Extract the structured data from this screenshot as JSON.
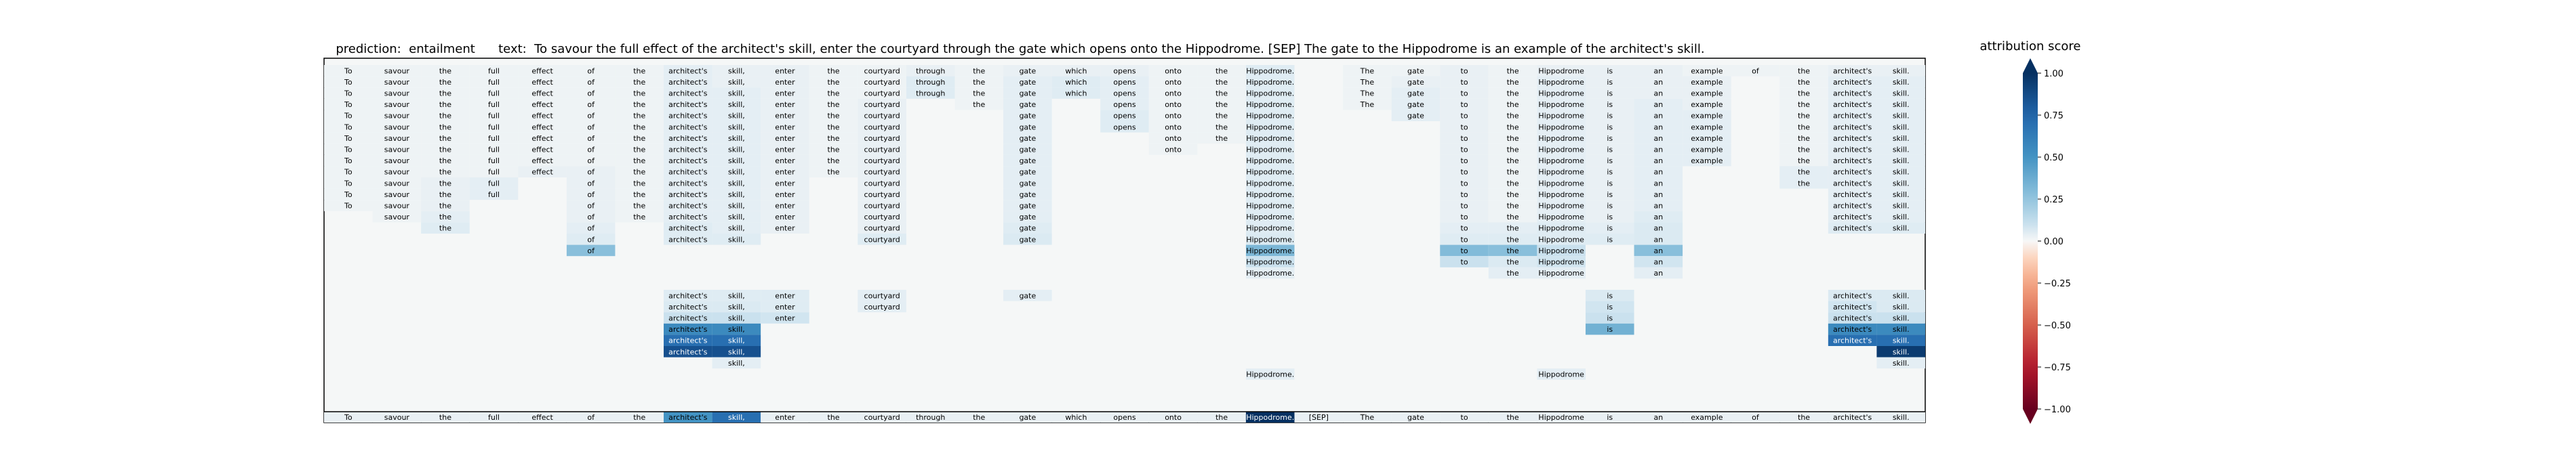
{
  "chart_data": {
    "type": "heatmap",
    "title": {
      "prediction_label": "prediction:",
      "prediction_value": "entailment",
      "text_label": "text:",
      "text_value": "To savour the full effect of the architect's skill, enter the courtyard through the gate which opens onto the Hippodrome. [SEP] The gate to the Hippodrome is an example of the architect's skill."
    },
    "tokens": [
      "To",
      "savour",
      "the",
      "full",
      "effect",
      "of",
      "the",
      "architect's",
      "skill,",
      "enter",
      "the",
      "courtyard",
      "through",
      "the",
      "gate",
      "which",
      "opens",
      "onto",
      "the",
      "Hippodrome.",
      "[SEP]",
      "The",
      "gate",
      "to",
      "the",
      "Hippodrome",
      "is",
      "an",
      "example",
      "of",
      "the",
      "architect's",
      "skill."
    ],
    "highlighted_token_indices": [
      8,
      19
    ],
    "colorbar": {
      "label": "attribution score",
      "range": [
        -1.0,
        1.0
      ],
      "ticks": [
        "1.00",
        "0.75",
        "0.50",
        "0.25",
        "0.00",
        "−0.25",
        "−0.50",
        "−0.75",
        "−1.00"
      ]
    },
    "row_spans": [
      {
        "tokens": "all",
        "from": 0,
        "to": 32
      },
      {
        "from": 0,
        "to": 32,
        "skip": [
          29
        ]
      },
      {
        "from": 0,
        "to": 32,
        "skip": [
          29
        ]
      },
      {
        "from": 0,
        "to": 32,
        "skip": [
          29
        ]
      },
      {
        "from": 0,
        "to": 32,
        "skip": [
          29
        ]
      },
      {
        "from": 0,
        "to": 32,
        "skip": [
          29
        ]
      },
      {
        "from": 0,
        "to": 32,
        "skip": [
          29
        ]
      },
      {
        "from": 0,
        "to": 32,
        "skip": [
          29
        ]
      },
      {
        "from": 0,
        "to": 32,
        "skip": [
          29
        ]
      }
    ],
    "rows": [
      [
        0,
        1,
        2,
        3,
        4,
        5,
        6,
        7,
        8,
        9,
        10,
        11,
        12,
        13,
        14,
        15,
        16,
        17,
        18,
        19,
        21,
        22,
        23,
        24,
        25,
        26,
        27,
        28,
        29,
        30,
        31,
        32
      ],
      [
        0,
        1,
        2,
        3,
        4,
        5,
        6,
        7,
        8,
        9,
        10,
        11,
        12,
        13,
        14,
        15,
        16,
        17,
        18,
        19,
        21,
        22,
        23,
        24,
        25,
        26,
        27,
        28,
        30,
        31,
        32
      ],
      [
        0,
        1,
        2,
        3,
        4,
        5,
        6,
        7,
        8,
        9,
        10,
        11,
        12,
        13,
        14,
        15,
        16,
        17,
        18,
        19,
        21,
        22,
        23,
        24,
        25,
        26,
        27,
        28,
        30,
        31,
        32
      ],
      [
        0,
        1,
        2,
        3,
        4,
        5,
        6,
        7,
        8,
        9,
        10,
        11,
        13,
        14,
        16,
        17,
        18,
        19,
        21,
        22,
        23,
        24,
        25,
        26,
        27,
        28,
        30,
        31,
        32
      ],
      [
        0,
        1,
        2,
        3,
        4,
        5,
        6,
        7,
        8,
        9,
        10,
        11,
        14,
        16,
        17,
        18,
        19,
        22,
        23,
        24,
        25,
        26,
        27,
        28,
        30,
        31,
        32
      ],
      [
        0,
        1,
        2,
        3,
        4,
        5,
        6,
        7,
        8,
        9,
        10,
        11,
        14,
        16,
        17,
        18,
        19,
        23,
        24,
        25,
        26,
        27,
        28,
        30,
        31,
        32
      ],
      [
        0,
        1,
        2,
        3,
        4,
        5,
        6,
        7,
        8,
        9,
        10,
        11,
        14,
        17,
        18,
        19,
        23,
        24,
        25,
        26,
        27,
        28,
        30,
        31,
        32
      ],
      [
        0,
        1,
        2,
        3,
        4,
        5,
        6,
        7,
        8,
        9,
        10,
        11,
        14,
        17,
        19,
        23,
        24,
        25,
        26,
        27,
        28,
        30,
        31,
        32
      ],
      [
        0,
        1,
        2,
        3,
        4,
        5,
        6,
        7,
        8,
        9,
        10,
        11,
        14,
        19,
        23,
        24,
        25,
        26,
        27,
        28,
        30,
        31,
        32
      ],
      [
        0,
        1,
        2,
        3,
        4,
        5,
        6,
        7,
        8,
        9,
        10,
        11,
        14,
        19,
        23,
        24,
        25,
        26,
        27,
        30,
        31,
        32
      ],
      [
        0,
        1,
        2,
        3,
        5,
        6,
        7,
        8,
        9,
        11,
        14,
        19,
        23,
        24,
        25,
        26,
        27,
        30,
        31,
        32
      ],
      [
        0,
        1,
        2,
        3,
        5,
        6,
        7,
        8,
        9,
        11,
        14,
        19,
        23,
        24,
        25,
        26,
        27,
        31,
        32
      ],
      [
        0,
        1,
        2,
        5,
        6,
        7,
        8,
        9,
        11,
        14,
        19,
        23,
        24,
        25,
        26,
        27,
        31,
        32
      ],
      [
        1,
        2,
        5,
        6,
        7,
        8,
        9,
        11,
        14,
        19,
        23,
        24,
        25,
        26,
        27,
        31,
        32
      ],
      [
        2,
        5,
        7,
        8,
        9,
        11,
        14,
        19,
        23,
        24,
        25,
        26,
        27,
        31,
        32
      ],
      [
        5,
        7,
        8,
        11,
        14,
        19,
        23,
        24,
        25,
        26,
        27
      ],
      [
        5,
        19,
        23,
        24,
        25,
        27
      ],
      [
        19,
        23,
        24,
        25,
        27
      ],
      [
        19,
        24,
        25,
        27
      ],
      [],
      [
        7,
        8,
        9,
        11,
        14,
        26,
        31,
        32
      ],
      [
        7,
        8,
        9,
        11,
        26,
        31,
        32
      ],
      [
        7,
        8,
        9,
        26,
        31,
        32
      ],
      [
        7,
        8,
        26,
        31,
        32
      ],
      [
        7,
        8,
        31,
        32
      ],
      [
        7,
        8,
        32
      ],
      [
        8,
        32
      ],
      [
        19,
        25
      ],
      [
        0,
        1,
        2,
        3,
        4,
        5,
        6,
        7,
        8,
        9,
        10,
        11,
        12,
        13,
        14,
        15,
        16,
        17,
        18,
        19,
        20,
        21,
        22,
        23,
        24,
        25,
        26,
        27,
        28,
        29,
        30,
        31,
        32
      ]
    ],
    "row_values": [
      [
        0.02,
        0.02,
        0.02,
        0.02,
        0.02,
        0.02,
        0.02,
        0.04,
        0.03,
        0.03,
        0.02,
        0.02,
        0.03,
        0.02,
        0.03,
        0.03,
        0.03,
        0.02,
        0.02,
        0.05,
        0.02,
        0.02,
        0.03,
        0.02,
        0.03,
        0.03,
        0.03,
        0.02,
        0.02,
        0.02,
        0.03,
        0.03
      ],
      [
        0.02,
        0.02,
        0.02,
        0.02,
        0.02,
        0.02,
        0.02,
        0.04,
        0.03,
        0.03,
        0.02,
        0.02,
        0.05,
        0.02,
        0.04,
        0.05,
        0.04,
        0.02,
        0.02,
        0.05,
        0.02,
        0.03,
        0.03,
        0.02,
        0.04,
        0.03,
        0.03,
        0.03,
        0.02,
        0.04,
        0.04
      ],
      [
        0.02,
        0.02,
        0.02,
        0.02,
        0.02,
        0.02,
        0.02,
        0.04,
        0.04,
        0.03,
        0.02,
        0.02,
        0.05,
        0.02,
        0.04,
        0.05,
        0.04,
        0.02,
        0.02,
        0.05,
        0.02,
        0.04,
        0.03,
        0.02,
        0.04,
        0.03,
        0.03,
        0.03,
        0.02,
        0.04,
        0.04
      ],
      [
        0.02,
        0.02,
        0.02,
        0.02,
        0.02,
        0.02,
        0.02,
        0.04,
        0.04,
        0.03,
        0.02,
        0.03,
        0.02,
        0.04,
        0.04,
        0.02,
        0.02,
        0.05,
        0.02,
        0.04,
        0.03,
        0.02,
        0.04,
        0.03,
        0.04,
        0.03,
        0.02,
        0.04,
        0.04
      ],
      [
        0.02,
        0.02,
        0.02,
        0.02,
        0.02,
        0.02,
        0.02,
        0.04,
        0.04,
        0.03,
        0.02,
        0.03,
        0.04,
        0.05,
        0.02,
        0.02,
        0.05,
        0.04,
        0.03,
        0.02,
        0.04,
        0.03,
        0.04,
        0.04,
        0.02,
        0.04,
        0.04
      ],
      [
        0.02,
        0.02,
        0.02,
        0.02,
        0.02,
        0.02,
        0.02,
        0.04,
        0.04,
        0.03,
        0.02,
        0.03,
        0.04,
        0.05,
        0.02,
        0.02,
        0.05,
        0.03,
        0.02,
        0.04,
        0.03,
        0.04,
        0.04,
        0.02,
        0.04,
        0.04
      ],
      [
        0.02,
        0.02,
        0.02,
        0.02,
        0.02,
        0.02,
        0.02,
        0.04,
        0.04,
        0.03,
        0.02,
        0.03,
        0.04,
        0.02,
        0.02,
        0.05,
        0.03,
        0.02,
        0.04,
        0.03,
        0.04,
        0.04,
        0.02,
        0.04,
        0.04
      ],
      [
        0.02,
        0.02,
        0.02,
        0.02,
        0.02,
        0.02,
        0.02,
        0.04,
        0.04,
        0.03,
        0.02,
        0.03,
        0.04,
        0.02,
        0.05,
        0.03,
        0.02,
        0.04,
        0.03,
        0.04,
        0.04,
        0.02,
        0.04,
        0.04
      ],
      [
        0.02,
        0.02,
        0.02,
        0.02,
        0.02,
        0.02,
        0.02,
        0.04,
        0.04,
        0.03,
        0.02,
        0.03,
        0.04,
        0.05,
        0.03,
        0.02,
        0.04,
        0.03,
        0.04,
        0.04,
        0.02,
        0.04,
        0.04
      ],
      [
        0.02,
        0.02,
        0.02,
        0.02,
        0.03,
        0.03,
        0.02,
        0.04,
        0.04,
        0.03,
        0.02,
        0.03,
        0.04,
        0.05,
        0.03,
        0.02,
        0.04,
        0.03,
        0.04,
        0.04,
        0.04,
        0.04
      ],
      [
        0.02,
        0.02,
        0.03,
        0.04,
        0.03,
        0.02,
        0.04,
        0.04,
        0.03,
        0.03,
        0.04,
        0.05,
        0.03,
        0.02,
        0.04,
        0.03,
        0.04,
        0.04,
        0.04,
        0.04
      ],
      [
        0.02,
        0.02,
        0.03,
        0.04,
        0.03,
        0.02,
        0.04,
        0.04,
        0.03,
        0.03,
        0.04,
        0.05,
        0.03,
        0.02,
        0.04,
        0.03,
        0.04,
        0.04,
        0.04
      ],
      [
        0.02,
        0.02,
        0.03,
        0.03,
        0.02,
        0.04,
        0.04,
        0.03,
        0.03,
        0.04,
        0.05,
        0.03,
        0.02,
        0.04,
        0.03,
        0.04,
        0.04,
        0.04
      ],
      [
        0.02,
        0.04,
        0.03,
        0.02,
        0.04,
        0.04,
        0.03,
        0.03,
        0.04,
        0.05,
        0.03,
        0.02,
        0.04,
        0.03,
        0.05,
        0.04,
        0.04
      ],
      [
        0.05,
        0.04,
        0.05,
        0.04,
        0.03,
        0.03,
        0.05,
        0.05,
        0.04,
        0.04,
        0.05,
        0.04,
        0.06,
        0.05,
        0.05
      ],
      [
        0.05,
        0.05,
        0.05,
        0.05,
        0.06,
        0.06,
        0.05,
        0.05,
        0.05,
        0.05,
        0.06
      ],
      [
        0.28,
        0.32,
        0.3,
        0.28,
        0.1,
        0.28
      ],
      [
        0.1,
        0.1,
        0.06,
        0.08,
        0.08
      ],
      [
        0.04,
        0.04,
        0.04,
        0.04
      ],
      [],
      [
        0.05,
        0.05,
        0.05,
        0.04,
        0.04,
        0.06,
        0.06,
        0.06
      ],
      [
        0.06,
        0.06,
        0.05,
        0.04,
        0.08,
        0.08,
        0.06
      ],
      [
        0.1,
        0.1,
        0.08,
        0.1,
        0.1,
        0.1
      ],
      [
        0.55,
        0.55,
        0.35,
        0.55,
        0.55
      ],
      [
        0.7,
        0.7,
        0.7,
        0.7
      ],
      [
        0.85,
        0.85,
        0.95
      ],
      [
        0.04,
        0.04
      ],
      [
        0.04,
        0.04
      ],
      [
        0.03,
        0.03,
        0.03,
        0.03,
        0.03,
        0.03,
        0.03,
        0.5,
        0.7,
        0.03,
        0.03,
        0.03,
        0.03,
        0.03,
        0.03,
        0.03,
        0.03,
        0.03,
        0.03,
        1.0,
        0.03,
        0.03,
        0.03,
        0.03,
        0.03,
        0.03,
        0.03,
        0.03,
        0.03,
        0.03,
        0.03,
        0.03,
        0.03
      ]
    ]
  }
}
